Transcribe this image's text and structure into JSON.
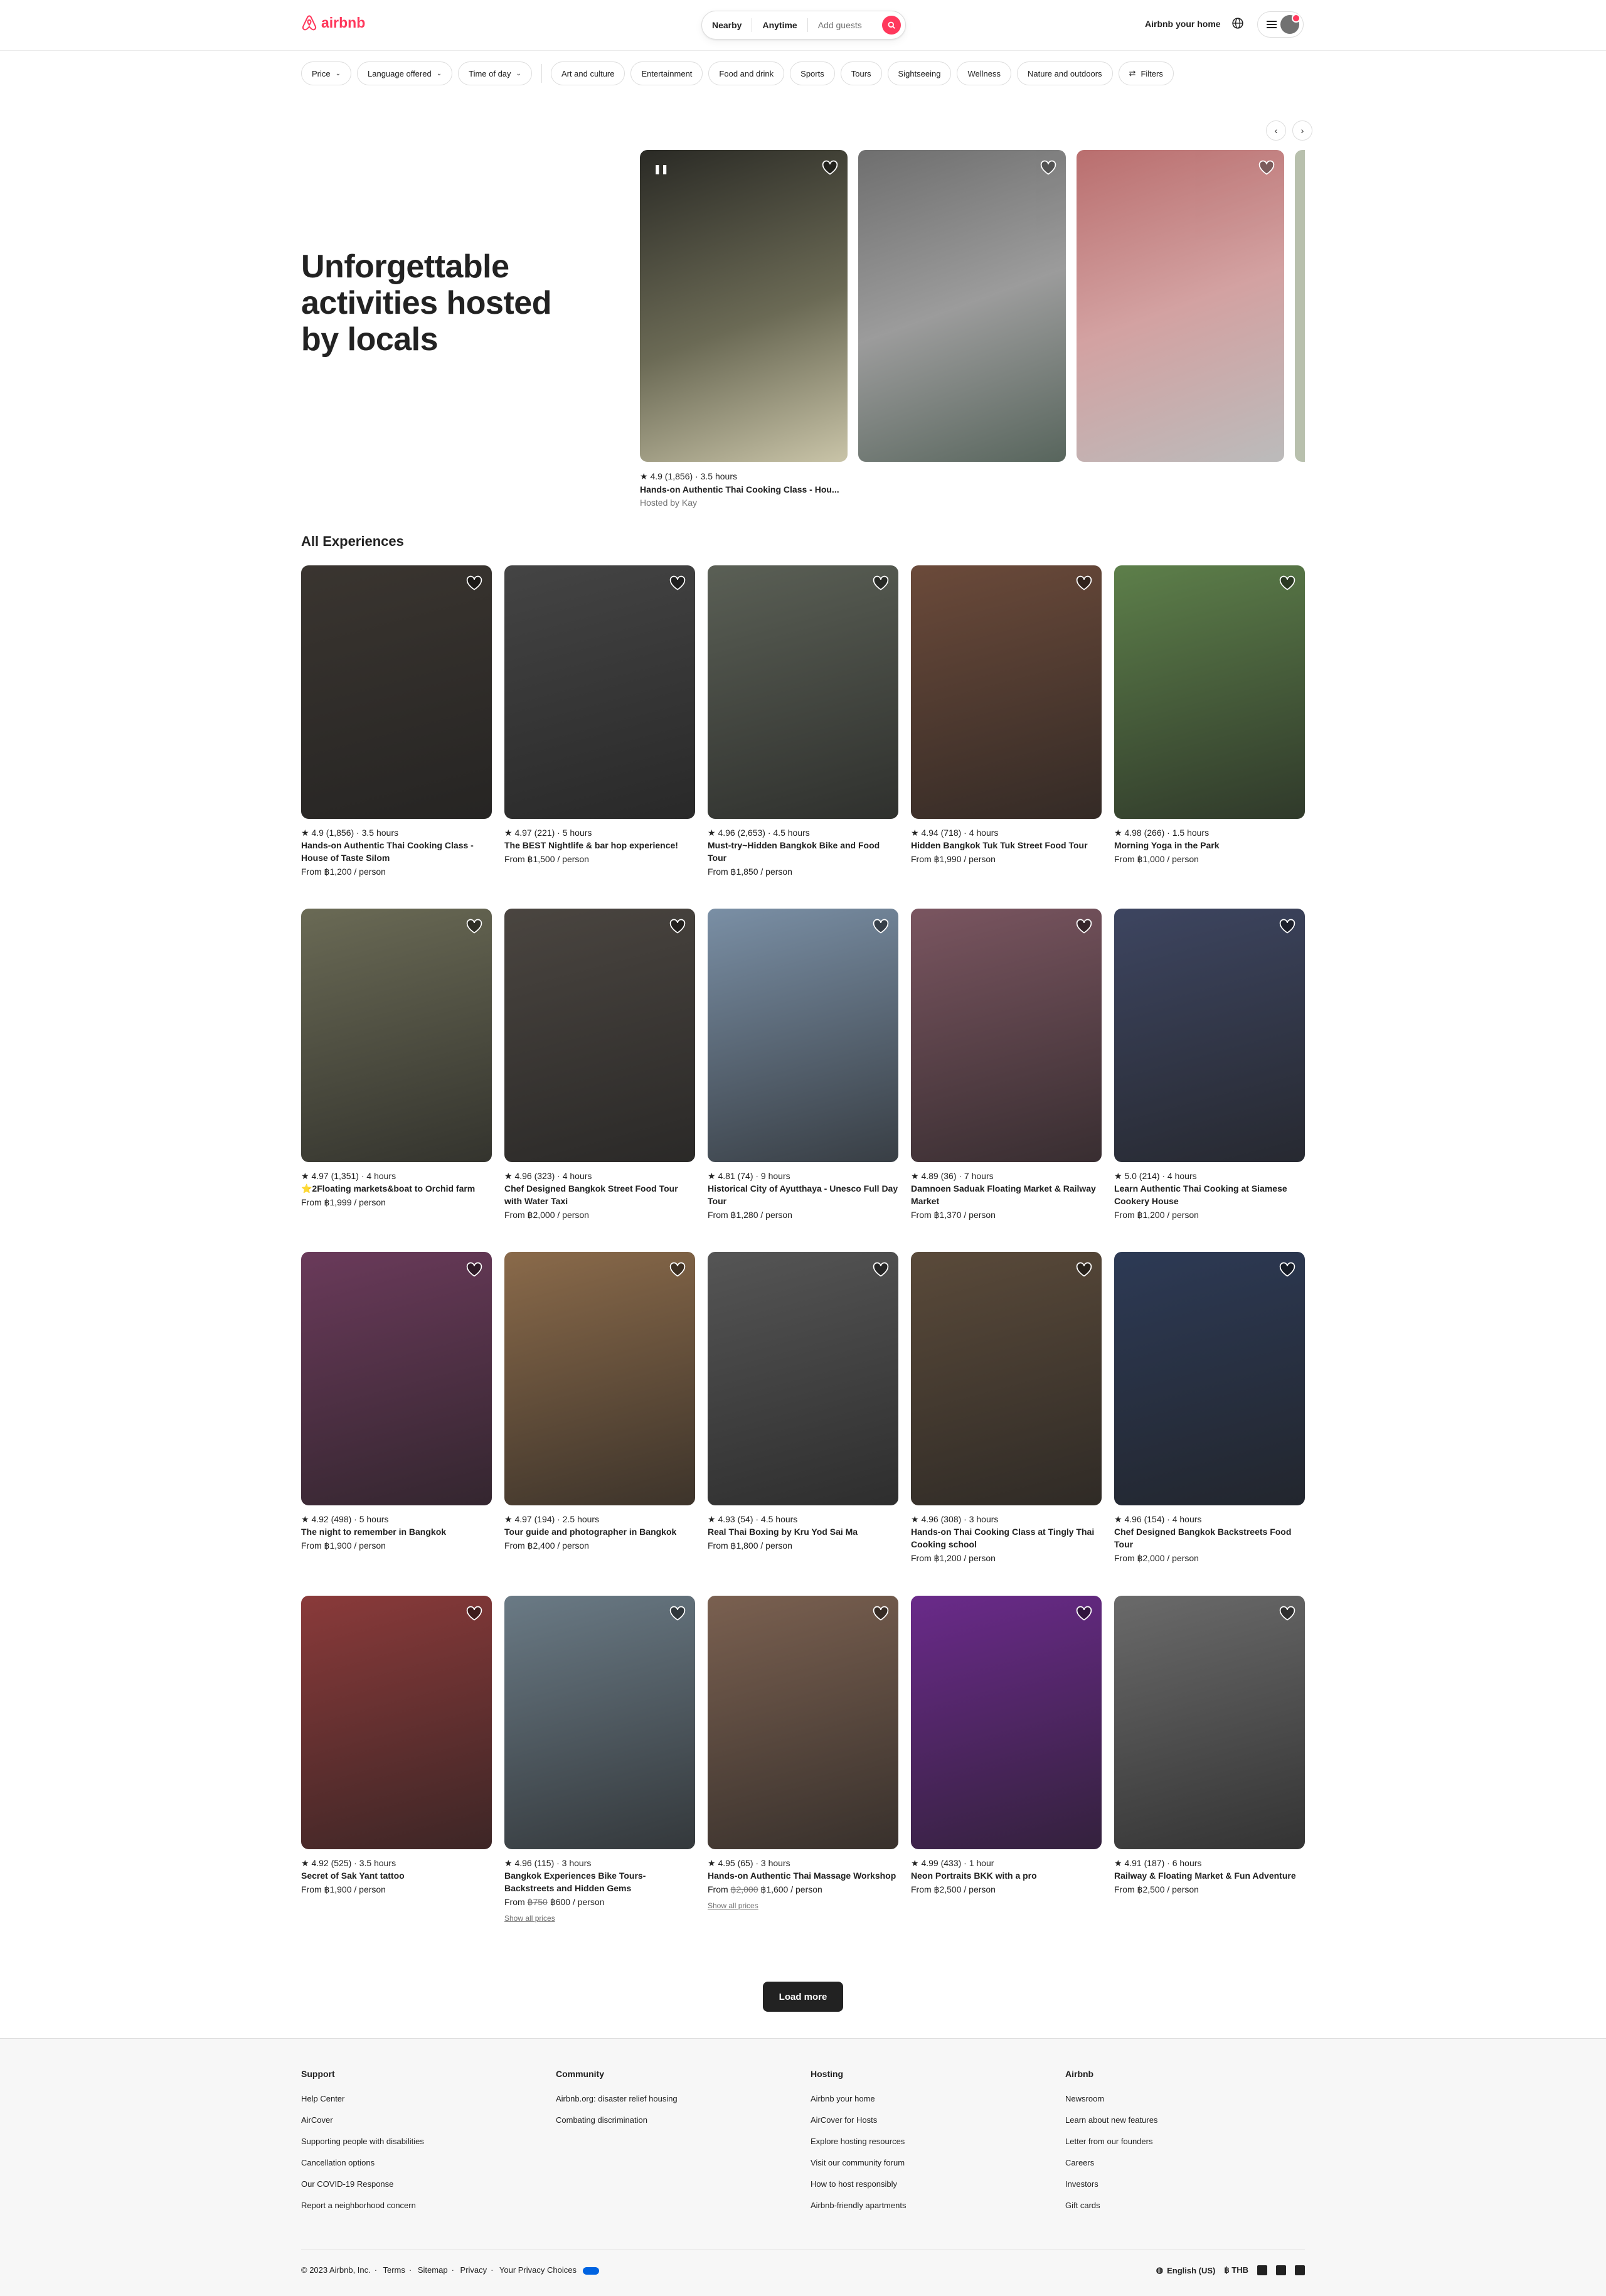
{
  "brand": {
    "name": "airbnb",
    "color": "#ff385c"
  },
  "search": {
    "nearby": "Nearby",
    "anytime": "Anytime",
    "guests": "Add guests"
  },
  "header": {
    "host_link": "Airbnb your home"
  },
  "filters": {
    "dropdowns": [
      "Price",
      "Language offered",
      "Time of day"
    ],
    "categories": [
      "Art and culture",
      "Entertainment",
      "Food and drink",
      "Sports",
      "Tours",
      "Sightseeing",
      "Wellness",
      "Nature and outdoors"
    ],
    "filters_label": "Filters"
  },
  "hero": {
    "title": "Unforgettable activities hosted by locals",
    "featured": {
      "rating": "4.9 (1,856) · 3.5 hours",
      "title": "Hands-on Authentic Thai Cooking Class - Hou...",
      "host": "Hosted by Kay"
    }
  },
  "section_title": "All Experiences",
  "experiences": [
    {
      "rating": "4.9 (1,856) · 3.5 hours",
      "title": "Hands-on Authentic Thai Cooking Class - House of Taste Silom",
      "price": "From ฿1,200 / person",
      "bg": "#3a3530"
    },
    {
      "rating": "4.97 (221) · 5 hours",
      "title": "The BEST Nightlife & bar hop experience!",
      "price": "From ฿1,500 / person",
      "bg": "#444"
    },
    {
      "rating": "4.96 (2,653) · 4.5 hours",
      "title": "Must-try~Hidden Bangkok Bike and Food Tour",
      "price": "From ฿1,850 / person",
      "bg": "#5a5f55"
    },
    {
      "rating": "4.94 (718) · 4 hours",
      "title": "Hidden Bangkok Tuk Tuk Street Food Tour",
      "price": "From ฿1,990 / person",
      "bg": "#6b4a3a"
    },
    {
      "rating": "4.98 (266) · 1.5 hours",
      "title": "Morning Yoga in the Park",
      "price": "From ฿1,000 / person",
      "bg": "#5d7f4a"
    },
    {
      "rating": "4.97 (1,351) · 4 hours",
      "title": "⭐2Floating markets&boat to Orchid farm",
      "price": "From ฿1,999 / person",
      "bg": "#6a6a55"
    },
    {
      "rating": "4.96 (323) · 4 hours",
      "title": "Chef Designed Bangkok Street Food Tour with Water Taxi",
      "price": "From ฿2,000 / person",
      "bg": "#4a4540"
    },
    {
      "rating": "4.81 (74) · 9 hours",
      "title": "Historical City of Ayutthaya - Unesco Full Day Tour",
      "price": "From ฿1,280 / person",
      "bg": "#7a8fa5"
    },
    {
      "rating": "4.89 (36) · 7 hours",
      "title": "Damnoen Saduak Floating Market & Railway Market",
      "price": "From ฿1,370 / person",
      "bg": "#7a5560"
    },
    {
      "rating": "5.0 (214) · 4 hours",
      "title": "Learn Authentic Thai Cooking at Siamese Cookery House",
      "price": "From ฿1,200 / person",
      "bg": "#3d4560"
    },
    {
      "rating": "4.92 (498) · 5 hours",
      "title": "The night to remember in Bangkok",
      "price": "From ฿1,900 / person",
      "bg": "#6a3a5a"
    },
    {
      "rating": "4.97 (194) · 2.5 hours",
      "title": "Tour guide and photographer in Bangkok",
      "price": "From ฿2,400 / person",
      "bg": "#8a6a4a"
    },
    {
      "rating": "4.93 (54) · 4.5 hours",
      "title": "Real Thai Boxing by Kru Yod Sai Ma",
      "price": "From ฿1,800 / person",
      "bg": "#555"
    },
    {
      "rating": "4.96 (308) · 3 hours",
      "title": "Hands-on Thai Cooking Class at Tingly Thai Cooking school",
      "price": "From ฿1,200 / person",
      "bg": "#5a4a3a"
    },
    {
      "rating": "4.96 (154) · 4 hours",
      "title": "Chef Designed Bangkok Backstreets Food Tour",
      "price": "From ฿2,000 / person",
      "bg": "#2d3a55"
    },
    {
      "rating": "4.92 (525) · 3.5 hours",
      "title": "Secret of Sak Yant tattoo",
      "price": "From ฿1,900 / person",
      "bg": "#8a3a3a"
    },
    {
      "rating": "4.96 (115) · 3 hours",
      "title": "Bangkok Experiences Bike Tours- Backstreets and Hidden Gems",
      "price_prefix": "From ",
      "price_old": "฿750",
      "price_new": " ฿600 / person",
      "show_prices": "Show all prices",
      "bg": "#6a7a85"
    },
    {
      "rating": "4.95 (65) · 3 hours",
      "title": "Hands-on Authentic Thai Massage Workshop",
      "price_prefix": "From ",
      "price_old": "฿2,000",
      "price_new": " ฿1,600 / person",
      "show_prices": "Show all prices",
      "bg": "#7a6050"
    },
    {
      "rating": "4.99 (433) · 1 hour",
      "title": "Neon Portraits BKK with a pro",
      "price": "From ฿2,500 / person",
      "bg": "#6a2a8a"
    },
    {
      "rating": "4.91 (187) · 6 hours",
      "title": "Railway & Floating Market & Fun Adventure",
      "price": "From ฿2,500 / person",
      "bg": "#6a6a6a"
    }
  ],
  "load_more": "Load more",
  "footer": {
    "columns": [
      {
        "heading": "Support",
        "links": [
          "Help Center",
          "AirCover",
          "Supporting people with disabilities",
          "Cancellation options",
          "Our COVID-19 Response",
          "Report a neighborhood concern"
        ]
      },
      {
        "heading": "Community",
        "links": [
          "Airbnb.org: disaster relief housing",
          "Combating discrimination"
        ]
      },
      {
        "heading": "Hosting",
        "links": [
          "Airbnb your home",
          "AirCover for Hosts",
          "Explore hosting resources",
          "Visit our community forum",
          "How to host responsibly",
          "Airbnb-friendly apartments"
        ]
      },
      {
        "heading": "Airbnb",
        "links": [
          "Newsroom",
          "Learn about new features",
          "Letter from our founders",
          "Careers",
          "Investors",
          "Gift cards"
        ]
      }
    ],
    "copyright": "© 2023 Airbnb, Inc.",
    "legal": [
      "Terms",
      "Sitemap",
      "Privacy",
      "Your Privacy Choices"
    ],
    "language": "English (US)",
    "currency": "฿  THB"
  }
}
